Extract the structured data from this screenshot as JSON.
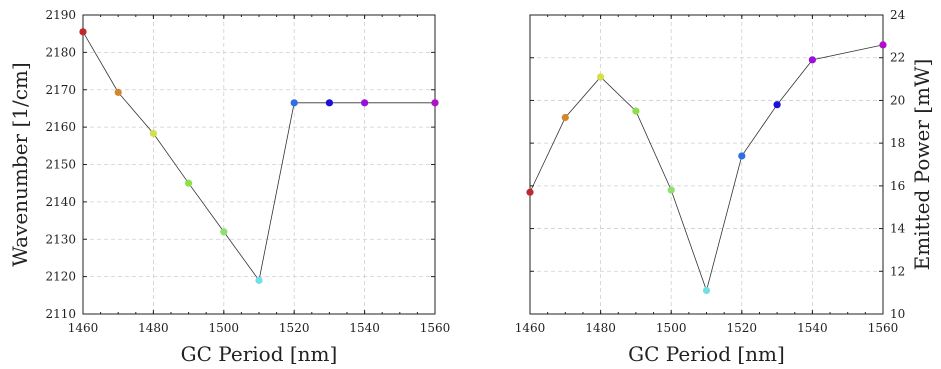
{
  "chart_data": [
    {
      "type": "line",
      "xlabel": "GC Period [nm]",
      "ylabel": "Wavenumber [1/cm]",
      "xlim": [
        1460,
        1560
      ],
      "ylim": [
        2110,
        2190
      ],
      "xticks": [
        "1460",
        "1480",
        "1500",
        "1520",
        "1540",
        "1560"
      ],
      "yticks": [
        "2110",
        "2120",
        "2130",
        "2140",
        "2150",
        "2160",
        "2170",
        "2180",
        "2190"
      ],
      "yaxis_side": "left",
      "grid": true,
      "x": [
        1460,
        1470,
        1480,
        1490,
        1500,
        1510,
        1520,
        1530,
        1540,
        1560
      ],
      "values": [
        2185.5,
        2169.3,
        2158.3,
        2145.0,
        2132.0,
        2119.0,
        2166.5,
        2166.5,
        2166.5,
        2166.5
      ],
      "point_colors": [
        "#c0282a",
        "#d4862c",
        "#d2e04a",
        "#8ee04a",
        "#8ee070",
        "#70e0e8",
        "#2f6fe0",
        "#1a10d8",
        "#9a10d8",
        "#b010c8"
      ]
    },
    {
      "type": "line",
      "xlabel": "GC Period [nm]",
      "ylabel": "Emitted Power [mW]",
      "xlim": [
        1460,
        1560
      ],
      "ylim": [
        10,
        24
      ],
      "xticks": [
        "1460",
        "1480",
        "1500",
        "1520",
        "1540",
        "1560"
      ],
      "yticks": [
        "10",
        "12",
        "14",
        "16",
        "18",
        "20",
        "22",
        "24"
      ],
      "yaxis_side": "right",
      "grid": true,
      "x": [
        1460,
        1470,
        1480,
        1490,
        1500,
        1510,
        1520,
        1530,
        1540,
        1560
      ],
      "values": [
        15.7,
        19.2,
        21.1,
        19.5,
        15.8,
        11.1,
        17.4,
        19.8,
        21.9,
        22.6
      ],
      "point_colors": [
        "#c0282a",
        "#d4862c",
        "#d2e04a",
        "#8ee04a",
        "#8ee070",
        "#70e0e8",
        "#2f6fe0",
        "#1a10d8",
        "#9a10d8",
        "#b010c8"
      ]
    }
  ]
}
